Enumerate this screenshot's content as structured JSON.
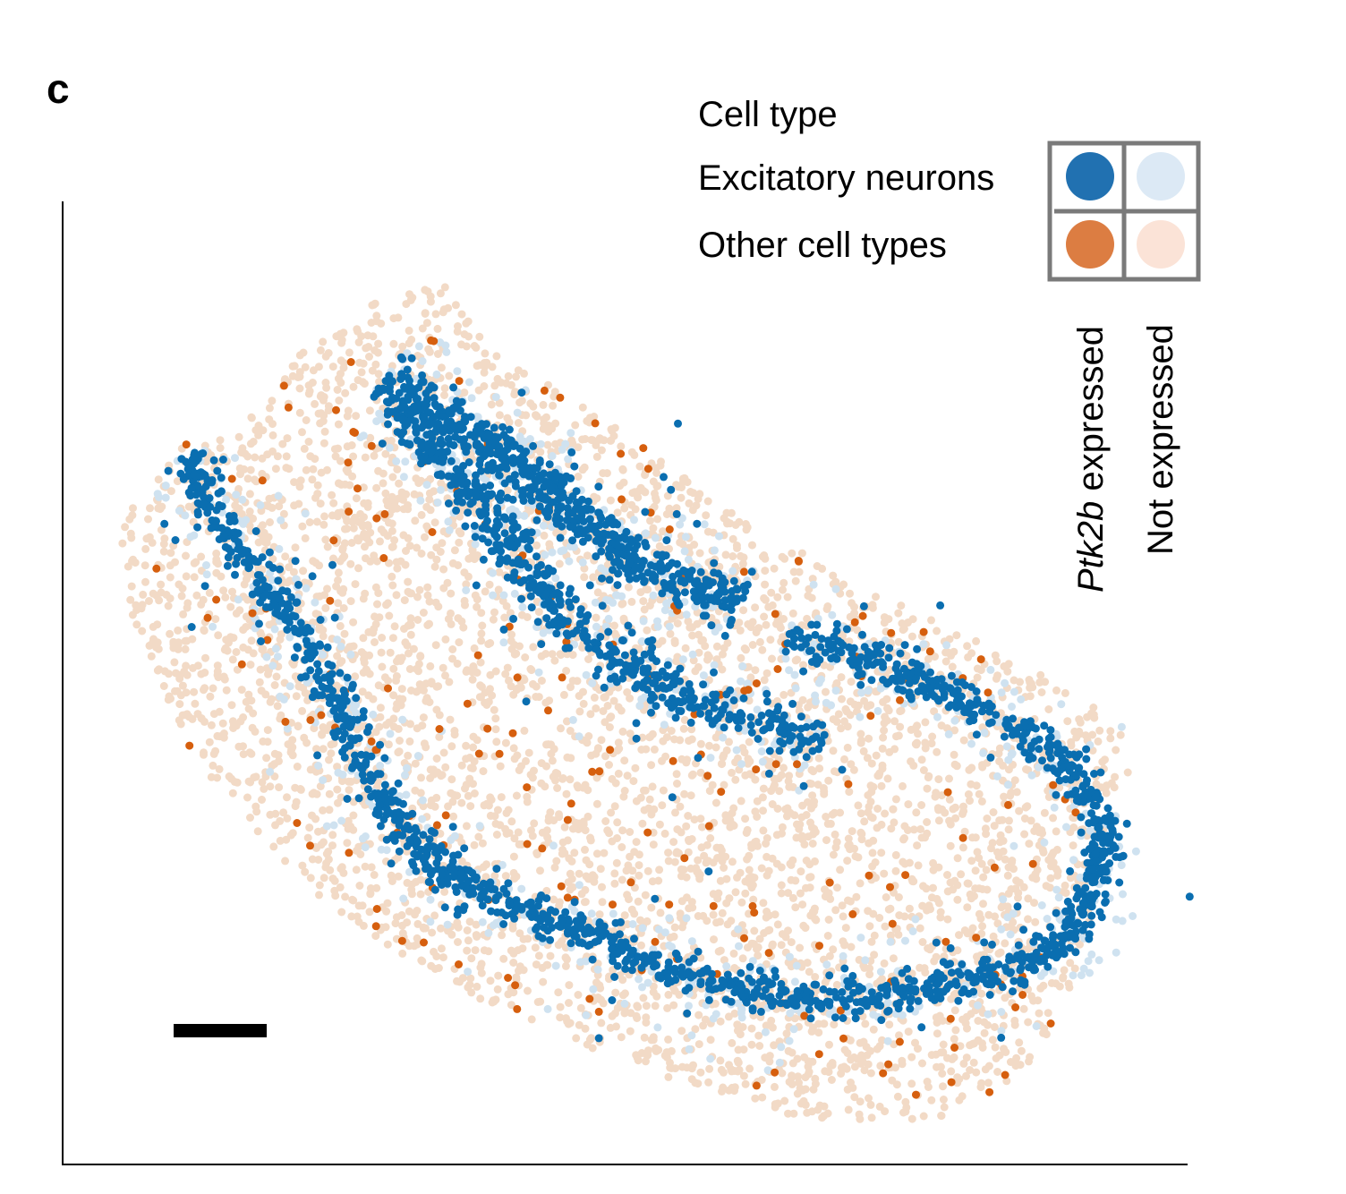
{
  "panel_label": "c",
  "chart_data": {
    "type": "scatter",
    "title": "",
    "xlabel": "",
    "ylabel": "",
    "xlim": [
      0,
      100
    ],
    "ylim": [
      0,
      100
    ],
    "grid": false,
    "legend": {
      "title": "Cell type",
      "placement": "top-right",
      "rows": [
        "Excitatory neurons",
        "Other cell types"
      ],
      "columns": [
        {
          "italic": "Ptk2b",
          "rest": " expressed"
        },
        {
          "italic": "",
          "rest": "Not expressed"
        }
      ]
    },
    "colors": {
      "excitatory_expressed": "#0a6eb0",
      "excitatory_not_expressed": "#cfe2f0",
      "other_expressed": "#d65f0e",
      "other_not_expressed": "#f2dac6",
      "legend_excitatory_expressed": "#2171b1",
      "legend_excitatory_not_expressed": "#dce9f5",
      "legend_other_expressed": "#dc7d42",
      "legend_other_not_expressed": "#fbe3d7",
      "legend_grid": "#7a7a7a"
    },
    "tissue_outline": [
      [
        4.8,
        66.1
      ],
      [
        10.4,
        74.5
      ],
      [
        18.3,
        79.1
      ],
      [
        20.7,
        83.8
      ],
      [
        28.7,
        90.2
      ],
      [
        34.2,
        91.2
      ],
      [
        39.0,
        83.7
      ],
      [
        46.2,
        79.1
      ],
      [
        58.1,
        68.9
      ],
      [
        70.1,
        60.5
      ],
      [
        82.0,
        54.0
      ],
      [
        93.9,
        46.6
      ],
      [
        95.1,
        41.9
      ],
      [
        90.0,
        18.7
      ],
      [
        86.0,
        9.4
      ],
      [
        78.0,
        4.7
      ],
      [
        66.1,
        4.7
      ],
      [
        50.2,
        10.3
      ],
      [
        34.2,
        18.7
      ],
      [
        22.3,
        28.0
      ],
      [
        11.9,
        41.9
      ],
      [
        6.4,
        55.9
      ]
    ],
    "excitatory_bands": [
      [
        [
          10.8,
          73.4
        ],
        [
          14.3,
          66.0
        ],
        [
          19.9,
          57.6
        ],
        [
          24.7,
          48.3
        ],
        [
          27.1,
          39.9
        ],
        [
          31.8,
          32.5
        ],
        [
          37.4,
          27.9
        ],
        [
          46.2,
          24.2
        ],
        [
          54.1,
          20.4
        ],
        [
          62.1,
          17.7
        ],
        [
          70.1,
          16.8
        ],
        [
          78.0,
          18.6
        ],
        [
          86.0,
          20.4
        ],
        [
          90.8,
          26.0
        ],
        [
          92.8,
          33.5
        ],
        [
          91.6,
          39.0
        ],
        [
          86.0,
          44.6
        ],
        [
          78.0,
          49.3
        ],
        [
          70.1,
          53.0
        ],
        [
          64.5,
          54.9
        ]
      ],
      [
        [
          28.7,
          81.9
        ],
        [
          34.2,
          77.2
        ],
        [
          40.6,
          72.6
        ],
        [
          46.2,
          67.0
        ],
        [
          52.5,
          61.4
        ],
        [
          60.5,
          58.6
        ]
      ],
      [
        [
          29.5,
          79.1
        ],
        [
          35.8,
          70.7
        ],
        [
          40.6,
          63.3
        ],
        [
          45.4,
          55.9
        ],
        [
          51.8,
          50.3
        ],
        [
          59.7,
          46.6
        ],
        [
          67.6,
          43.8
        ]
      ]
    ],
    "approx_counts": {
      "other_not_expressed": 4500,
      "excitatory_not_expressed": 900,
      "excitatory_expressed": 2600,
      "other_expressed": 200
    }
  }
}
